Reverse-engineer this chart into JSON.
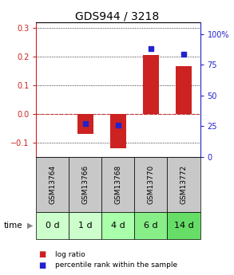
{
  "title": "GDS944 / 3218",
  "categories": [
    "GSM13764",
    "GSM13766",
    "GSM13768",
    "GSM13770",
    "GSM13772"
  ],
  "time_labels": [
    "0 d",
    "1 d",
    "4 d",
    "6 d",
    "14 d"
  ],
  "log_ratio": [
    0.0,
    -0.07,
    -0.12,
    0.205,
    0.165
  ],
  "percentile_rank": [
    null,
    27,
    26,
    88,
    84
  ],
  "ylim_left": [
    -0.15,
    0.32
  ],
  "ylim_right": [
    0,
    110
  ],
  "left_ticks": [
    -0.1,
    0.0,
    0.1,
    0.2,
    0.3
  ],
  "right_ticks": [
    0,
    25,
    50,
    75,
    100
  ],
  "right_tick_labels": [
    "0",
    "25",
    "50",
    "75",
    "100%"
  ],
  "bar_color": "#cc2222",
  "dot_color": "#2222cc",
  "grid_color": "#000000",
  "zero_line_color": "#cc3333",
  "gsm_bg": "#c8c8c8",
  "time_colors": [
    "#ccffcc",
    "#ccffcc",
    "#aaffaa",
    "#88ee88",
    "#66dd66"
  ],
  "bar_width": 0.5,
  "title_fontsize": 10,
  "tick_fontsize": 7,
  "gsm_fontsize": 6.5,
  "time_fontsize": 8
}
